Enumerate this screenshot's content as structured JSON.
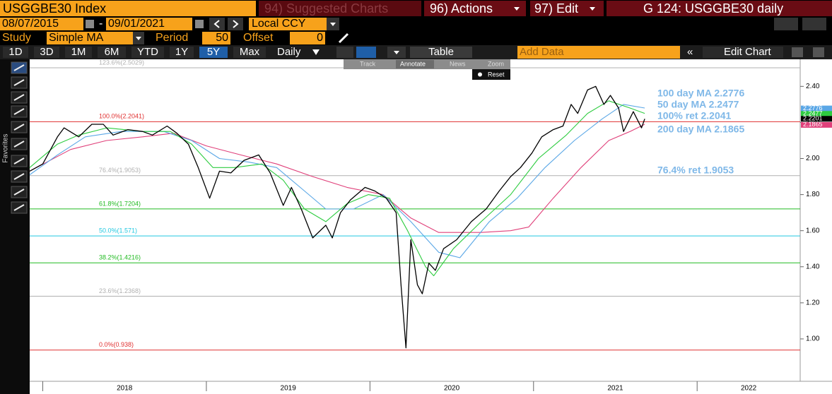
{
  "toolbar": {
    "security": "USGGBE30 Index",
    "suggested": "94) Suggested Charts",
    "actions": "96) Actions",
    "edit": "97) Edit",
    "page": "G 124: USGGBE30 daily",
    "start_date": "08/07/2015",
    "date_sep": "-",
    "end_date": "09/01/2021",
    "currency": "Local CCY",
    "study_label": "Study",
    "study": "Simple MA",
    "period_label": "Period",
    "period": "50",
    "offset_label": "Offset",
    "offset": "0",
    "ranges": [
      "1D",
      "3D",
      "1M",
      "6M",
      "YTD",
      "1Y",
      "5Y",
      "Max"
    ],
    "frequency": "Daily",
    "table": "Table",
    "add_data": "Add Data",
    "edit_chart": "Edit Chart",
    "track": "Track",
    "annotate": "Annotate",
    "news": "News",
    "zoom": "Zoom",
    "reset": "Reset",
    "favorites": "Favorites"
  },
  "chart_data": {
    "type": "line",
    "xlim": [
      2017.92,
      2022.63
    ],
    "xticks": [
      2018,
      2019,
      2020,
      2021,
      2022
    ],
    "ylim": [
      0.765,
      2.55
    ],
    "yticks": [
      {
        "value": 1,
        "label": "1.00"
      },
      {
        "value": 1.2,
        "label": "1.20"
      },
      {
        "value": 1.4,
        "label": "1.40"
      },
      {
        "value": 1.6,
        "label": "1.60"
      },
      {
        "value": 1.8,
        "label": "1.80"
      },
      {
        "value": 2,
        "label": "2.00"
      },
      {
        "value": 2.2,
        "label": "2.20"
      },
      {
        "value": 2.4,
        "label": "2.40"
      }
    ],
    "series": [
      {
        "color": "#e0407a",
        "x": [
          2017.92,
          2018.17,
          2018.39,
          2018.61,
          2018.8,
          2019.0,
          2019.21,
          2019.43,
          2019.65,
          2019.86,
          2020.08,
          2020.25,
          2020.42,
          2020.68,
          2020.86,
          2020.97,
          2021.12,
          2021.29,
          2021.46,
          2021.59,
          2021.68
        ],
        "values": [
          1.93,
          2.05,
          2.1,
          2.12,
          2.14,
          2.07,
          2.02,
          1.97,
          1.9,
          1.84,
          1.8,
          1.67,
          1.59,
          1.59,
          1.6,
          1.62,
          1.78,
          1.95,
          2.1,
          2.15,
          2.19
        ]
      },
      {
        "color": "#5aa7e6",
        "x": [
          2017.92,
          2018.09,
          2018.26,
          2018.48,
          2018.74,
          2018.91,
          2019.08,
          2019.26,
          2019.43,
          2019.6,
          2019.73,
          2019.9,
          2020.08,
          2020.25,
          2020.42,
          2020.55,
          2020.73,
          2020.9,
          2021.07,
          2021.25,
          2021.42,
          2021.55,
          2021.68
        ],
        "values": [
          1.91,
          2.02,
          2.12,
          2.15,
          2.15,
          2.1,
          2.0,
          1.98,
          1.95,
          1.82,
          1.72,
          1.72,
          1.8,
          1.65,
          1.48,
          1.45,
          1.65,
          1.78,
          1.95,
          2.1,
          2.22,
          2.3,
          2.28
        ]
      },
      {
        "color": "#2ecc40",
        "x": [
          2017.92,
          2018.09,
          2018.22,
          2018.39,
          2018.61,
          2018.78,
          2018.91,
          2019.04,
          2019.17,
          2019.34,
          2019.47,
          2019.6,
          2019.73,
          2019.86,
          2019.99,
          2020.12,
          2020.23,
          2020.34,
          2020.39,
          2020.51,
          2020.68,
          2020.86,
          2021.03,
          2021.2,
          2021.33,
          2021.46,
          2021.59,
          2021.68
        ],
        "values": [
          1.95,
          2.08,
          2.13,
          2.17,
          2.15,
          2.15,
          2.08,
          1.95,
          1.95,
          1.97,
          1.88,
          1.72,
          1.65,
          1.75,
          1.8,
          1.78,
          1.6,
          1.4,
          1.35,
          1.5,
          1.65,
          1.8,
          2.0,
          2.13,
          2.25,
          2.32,
          2.28,
          2.25
        ]
      },
      {
        "color": "#000000",
        "x": [
          2017.92,
          2018.0,
          2018.09,
          2018.13,
          2018.22,
          2018.3,
          2018.37,
          2018.43,
          2018.52,
          2018.61,
          2018.67,
          2018.76,
          2018.82,
          2018.89,
          2018.95,
          2019.02,
          2019.08,
          2019.15,
          2019.23,
          2019.32,
          2019.39,
          2019.47,
          2019.52,
          2019.58,
          2019.65,
          2019.73,
          2019.77,
          2019.82,
          2019.88,
          2019.97,
          2020.03,
          2020.1,
          2020.16,
          2020.19,
          2020.22,
          2020.23,
          2020.25,
          2020.29,
          2020.32,
          2020.36,
          2020.4,
          2020.45,
          2020.53,
          2020.62,
          2020.71,
          2020.79,
          2020.86,
          2020.92,
          2020.99,
          2021.05,
          2021.12,
          2021.18,
          2021.23,
          2021.27,
          2021.33,
          2021.38,
          2021.43,
          2021.47,
          2021.52,
          2021.55,
          2021.61,
          2021.66,
          2021.68
        ],
        "values": [
          1.93,
          1.97,
          2.12,
          2.17,
          2.12,
          2.19,
          2.19,
          2.13,
          2.16,
          2.15,
          2.13,
          2.18,
          2.14,
          2.08,
          1.95,
          1.78,
          1.93,
          1.92,
          1.99,
          2.02,
          1.92,
          1.74,
          1.84,
          1.72,
          1.56,
          1.63,
          1.56,
          1.7,
          1.77,
          1.84,
          1.82,
          1.78,
          1.7,
          1.3,
          0.95,
          1.15,
          1.55,
          1.3,
          1.25,
          1.42,
          1.38,
          1.5,
          1.55,
          1.65,
          1.72,
          1.82,
          1.9,
          1.95,
          2.03,
          2.12,
          2.16,
          2.18,
          2.3,
          2.25,
          2.38,
          2.4,
          2.3,
          2.35,
          2.28,
          2.15,
          2.26,
          2.17,
          2.22
        ]
      }
    ],
    "fib_levels": [
      {
        "label": "123.6%(2.5029)",
        "value": 2.5029,
        "color": "#b0b0b0"
      },
      {
        "label": "100.0%(2.2041)",
        "value": 2.2041,
        "color": "#e03030"
      },
      {
        "label": "76.4%(1.9053)",
        "value": 1.9053,
        "color": "#b0b0b0"
      },
      {
        "label": "61.8%(1.7204)",
        "value": 1.7204,
        "color": "#22bb22"
      },
      {
        "label": "50.0%(1.571)",
        "value": 1.571,
        "color": "#22c8e0"
      },
      {
        "label": "38.2%(1.4216)",
        "value": 1.4216,
        "color": "#22bb22"
      },
      {
        "label": "23.6%(1.2368)",
        "value": 1.2368,
        "color": "#b0b0b0"
      },
      {
        "label": "0.0%(0.938)",
        "value": 0.938,
        "color": "#e03030"
      }
    ],
    "annotations": [
      "100 day MA 2.2776",
      "50 day MA 2.2477",
      "100% ret 2.2041",
      "200 day MA 2.1865",
      "76.4% ret 1.9053"
    ],
    "value_tags": [
      {
        "value": 2.2776,
        "color": "#5aa7e6"
      },
      {
        "value": 2.2477,
        "color": "#2ecc40"
      },
      {
        "value": 2.2201,
        "color": "#000000"
      },
      {
        "value": 2.1865,
        "color": "#e0407a"
      }
    ]
  }
}
